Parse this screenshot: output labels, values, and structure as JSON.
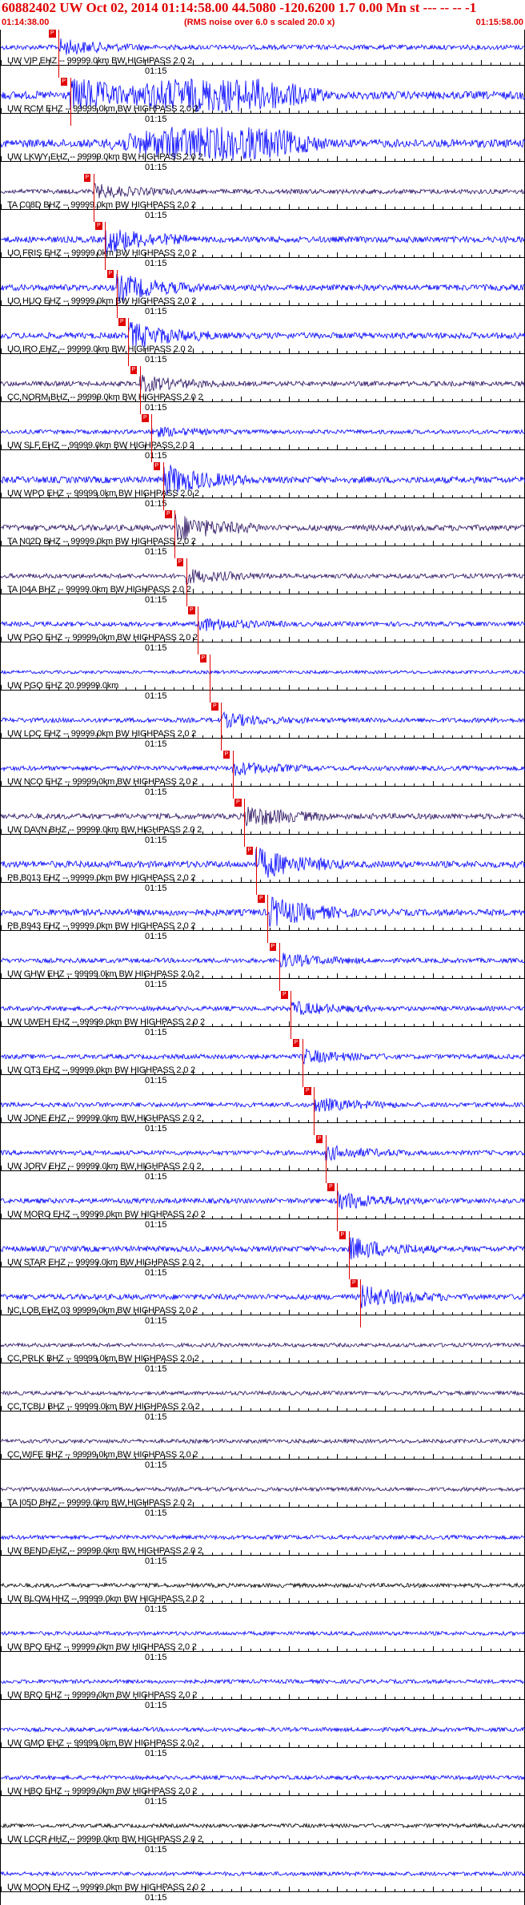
{
  "header": {
    "title": "60882402 UW Oct 02, 2014 01:14:58.00   44.5080 -120.6200  1.7 0.00 Mn st --- -- --  -1",
    "start_time": "01:14:38.00",
    "end_time": "01:15:58.00",
    "rms_note": "(RMS noise over 6.0 s scaled 20.0 x)"
  },
  "minute_label": "01:15",
  "colors": {
    "accent": "#e00000",
    "trace_blue": "#0000ff",
    "trace_dark": "#2a1060",
    "trace_black": "#000000"
  },
  "traces": [
    {
      "label": "UW VIP EHZ -- 99999.0km BW  HIGHPASS  2.0  2",
      "color": "#0000ff",
      "amp": 0.35,
      "pick": "P"
    },
    {
      "label": "UW RCM EHZ -- 99999.0km BW  HIGHPASS  2.0  2",
      "color": "#0000ff",
      "amp": 1.0,
      "pick": "P"
    },
    {
      "label": "UW LKWY EHZ -- 99999.0km BW  HIGHPASS  2.0  2",
      "color": "#0000ff",
      "amp": 1.0,
      "pick": ""
    },
    {
      "label": "TA C08D BHZ -- 99999.0km BW  HIGHPASS  2.0  2",
      "color": "#2a1060",
      "amp": 0.3,
      "pick": "P"
    },
    {
      "label": "UO FRIS EHZ -- 99999.0km BW  HIGHPASS  2.0  2",
      "color": "#0000ff",
      "amp": 0.6,
      "pick": "P"
    },
    {
      "label": "UO HUO EHZ -- 99999.0km BW  HIGHPASS  2.0  2",
      "color": "#0000ff",
      "amp": 0.6,
      "pick": "P"
    },
    {
      "label": "UO IRO EHZ -- 99999.0km BW  HIGHPASS  2.0  2",
      "color": "#0000ff",
      "amp": 0.6,
      "pick": "P"
    },
    {
      "label": "CC NORM BHZ -- 99999.0km BW  HIGHPASS  2.0  2",
      "color": "#2a1060",
      "amp": 0.35,
      "pick": "P"
    },
    {
      "label": "UW SLF EHZ -- 99999.0km BW  HIGHPASS  2.0  2",
      "color": "#0000ff",
      "amp": 0.2,
      "pick": "P"
    },
    {
      "label": "UW WPO EHZ -- 99999.0km BW  HIGHPASS  2.0  2",
      "color": "#0000ff",
      "amp": 0.7,
      "pick": "P"
    },
    {
      "label": "TA N02D BHZ -- 99999.0km BW  HIGHPASS  2.0  2",
      "color": "#2a1060",
      "amp": 0.6,
      "pick": "P"
    },
    {
      "label": "TA I04A BHZ -- 99999.0km BW  HIGHPASS  2.0  2",
      "color": "#2a1060",
      "amp": 0.3,
      "pick": "P"
    },
    {
      "label": "UW PGO EHZ -- 99999.0km BW  HIGHPASS  2.0  2",
      "color": "#0000ff",
      "amp": 0.3,
      "pick": "P"
    },
    {
      "label": "UW PGO EHZ 20.99999.0km",
      "color": "#0000ff",
      "amp": 0.0,
      "pick": "P"
    },
    {
      "label": "UW LOC EHZ -- 99999.0km BW  HIGHPASS  2.0  2",
      "color": "#0000ff",
      "amp": 0.3,
      "pick": "P"
    },
    {
      "label": "UW NCO EHZ -- 99999.0km BW  HIGHPASS  2.0  2",
      "color": "#0000ff",
      "amp": 0.3,
      "pick": "P"
    },
    {
      "label": "UW DAVN BHZ -- 99999.0km BW  HIGHPASS  2.0  2",
      "color": "#2a1060",
      "amp": 0.5,
      "pick": "P"
    },
    {
      "label": "PB B013 EHZ -- 99999.0km BW  HIGHPASS  2.0  2",
      "color": "#0000ff",
      "amp": 0.7,
      "pick": "P"
    },
    {
      "label": "PB B943 EHZ -- 99999.0km BW  HIGHPASS  2.0  2",
      "color": "#0000ff",
      "amp": 0.7,
      "pick": "P"
    },
    {
      "label": "UW GHW EHZ -- 99999.0km BW  HIGHPASS  2.0  2",
      "color": "#0000ff",
      "amp": 0.3,
      "pick": "P"
    },
    {
      "label": "UW UWEH EHZ -- 99999.0km BW  HIGHPASS  2.0  2",
      "color": "#0000ff",
      "amp": 0.3,
      "pick": "P"
    },
    {
      "label": "UW OT3 EHZ -- 99999.0km BW  HIGHPASS  2.0  2",
      "color": "#0000ff",
      "amp": 0.3,
      "pick": "P"
    },
    {
      "label": "UW JONE EHZ -- 99999.0km BW  HIGHPASS  2.0  2",
      "color": "#0000ff",
      "amp": 0.3,
      "pick": "P"
    },
    {
      "label": "UW JORV EHZ -- 99999.0km BW  HIGHPASS  2.0  2",
      "color": "#0000ff",
      "amp": 0.3,
      "pick": "P"
    },
    {
      "label": "UW MORO EHZ -- 99999.0km BW  HIGHPASS  2.0  2",
      "color": "#0000ff",
      "amp": 0.4,
      "pick": "P"
    },
    {
      "label": "UW STAR EHZ -- 99999.0km BW  HIGHPASS  2.0  2",
      "color": "#0000ff",
      "amp": 0.5,
      "pick": "P"
    },
    {
      "label": "NC LOB EHZ 03 99999.0km BW  HIGHPASS  2.0  2",
      "color": "#0000ff",
      "amp": 0.5,
      "pick": "P"
    },
    {
      "label": "CC PRLK BHZ -- 99999.0km BW  HIGHPASS  2.0  2",
      "color": "#2a1060",
      "amp": 0.15,
      "pick": ""
    },
    {
      "label": "CC TCBU BHZ -- 99999.0km BW  HIGHPASS  2.0  2",
      "color": "#2a1060",
      "amp": 0.15,
      "pick": ""
    },
    {
      "label": "CC WIFE BHZ -- 99999.0km BW  HIGHPASS  2.0  2",
      "color": "#2a1060",
      "amp": 0.15,
      "pick": ""
    },
    {
      "label": "TA I05D BHZ -- 99999.0km BW  HIGHPASS  2.0  2",
      "color": "#2a1060",
      "amp": 0.15,
      "pick": ""
    },
    {
      "label": "UW BEND EHZ -- 99999.0km BW  HIGHPASS  2.0  2",
      "color": "#0000ff",
      "amp": 0.2,
      "pick": ""
    },
    {
      "label": "UW BLOW HHZ -- 99999.0km BW  HIGHPASS  2.0  2",
      "color": "#000000",
      "amp": 0.2,
      "pick": ""
    },
    {
      "label": "UW BPO EHZ -- 99999.0km BW  HIGHPASS  2.0  2",
      "color": "#0000ff",
      "amp": 0.15,
      "pick": ""
    },
    {
      "label": "UW BRO EHZ -- 99999.0km BW  HIGHPASS  2.0  2",
      "color": "#0000ff",
      "amp": 0.15,
      "pick": ""
    },
    {
      "label": "UW GMO EHZ -- 99999.0km BW  HIGHPASS  2.0  2",
      "color": "#0000ff",
      "amp": 0.2,
      "pick": ""
    },
    {
      "label": "UW HBO EHZ -- 99999.0km BW  HIGHPASS  2.0  2",
      "color": "#0000ff",
      "amp": 0.2,
      "pick": ""
    },
    {
      "label": "UW LCCR HHZ -- 99999.0km BW  HIGHPASS  2.0  2",
      "color": "#000000",
      "amp": 0.15,
      "pick": ""
    },
    {
      "label": "UW MOON EHZ -- 99999.0km BW  HIGHPASS  2.0  2",
      "color": "#0000ff",
      "amp": 0.15,
      "pick": ""
    }
  ]
}
